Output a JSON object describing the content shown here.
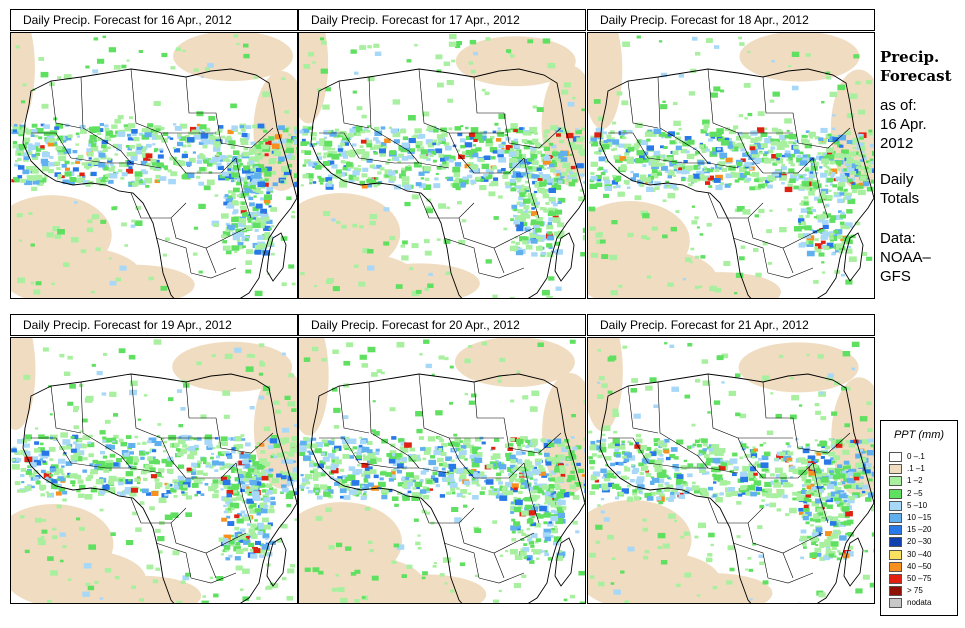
{
  "panels": [
    {
      "title": "Daily Precip. Forecast for  16 Apr., 2012"
    },
    {
      "title": "Daily Precip. Forecast for  17 Apr., 2012"
    },
    {
      "title": "Daily Precip. Forecast for  18 Apr., 2012"
    },
    {
      "title": "Daily Precip. Forecast for  19 Apr., 2012"
    },
    {
      "title": "Daily Precip. Forecast for  20 Apr., 2012"
    },
    {
      "title": "Daily Precip. Forecast for  21 Apr., 2012"
    }
  ],
  "sidebar": {
    "title_line1": "Precip.",
    "title_line2": "Forecast",
    "asof_line1": "as of:",
    "asof_line2": "16 Apr.",
    "asof_line3": "2012",
    "totals_line1": "Daily",
    "totals_line2": "Totals",
    "data_line1": "Data:",
    "data_line2": "NOAA–",
    "data_line3": "GFS"
  },
  "legend": {
    "title": "PPT (mm)",
    "items": [
      {
        "label": "0 –.1",
        "color": "#ffffff"
      },
      {
        "label": ".1 –1",
        "color": "#f0dcc0"
      },
      {
        "label": "1 –2",
        "color": "#a8f0a0"
      },
      {
        "label": "2 –5",
        "color": "#60e060"
      },
      {
        "label": "5 –10",
        "color": "#a8d8f8"
      },
      {
        "label": "10 –15",
        "color": "#60b0f0"
      },
      {
        "label": "15 –20",
        "color": "#2878e8"
      },
      {
        "label": "20 –30",
        "color": "#1040b0"
      },
      {
        "label": "30 –40",
        "color": "#f8e060"
      },
      {
        "label": "40 –50",
        "color": "#f89020"
      },
      {
        "label": "50 –75",
        "color": "#e02010"
      },
      {
        "label": "> 75",
        "color": "#901008"
      },
      {
        "label": "nodata",
        "color": "#c8c8c8"
      }
    ]
  }
}
